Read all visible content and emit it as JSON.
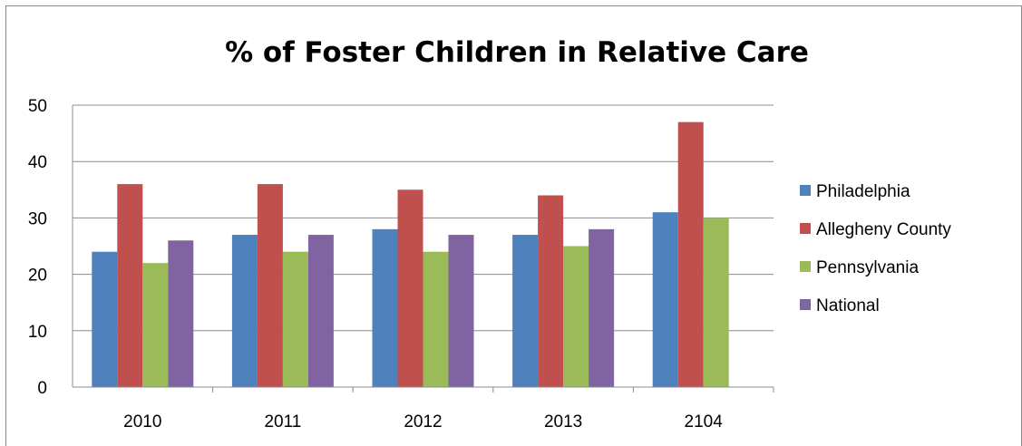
{
  "chart_data": {
    "type": "bar",
    "title": "% of Foster Children in Relative Care",
    "xlabel": "",
    "ylabel": "",
    "categories": [
      "2010",
      "2011",
      "2012",
      "2013",
      "2104"
    ],
    "series": [
      {
        "name": "Philadelphia",
        "color": "#4F81BD",
        "values": [
          24,
          27,
          28,
          27,
          31
        ]
      },
      {
        "name": "Allegheny County",
        "color": "#C0504D",
        "values": [
          36,
          36,
          35,
          34,
          47
        ]
      },
      {
        "name": "Pennsylvania",
        "color": "#9BBB59",
        "values": [
          22,
          24,
          24,
          25,
          30
        ]
      },
      {
        "name": "National",
        "color": "#8064A2",
        "values": [
          26,
          27,
          27,
          28,
          null
        ]
      }
    ],
    "ylim": [
      0,
      50
    ],
    "yticks": [
      0,
      10,
      20,
      30,
      40,
      50
    ],
    "grid": true,
    "legend_position": "right"
  }
}
